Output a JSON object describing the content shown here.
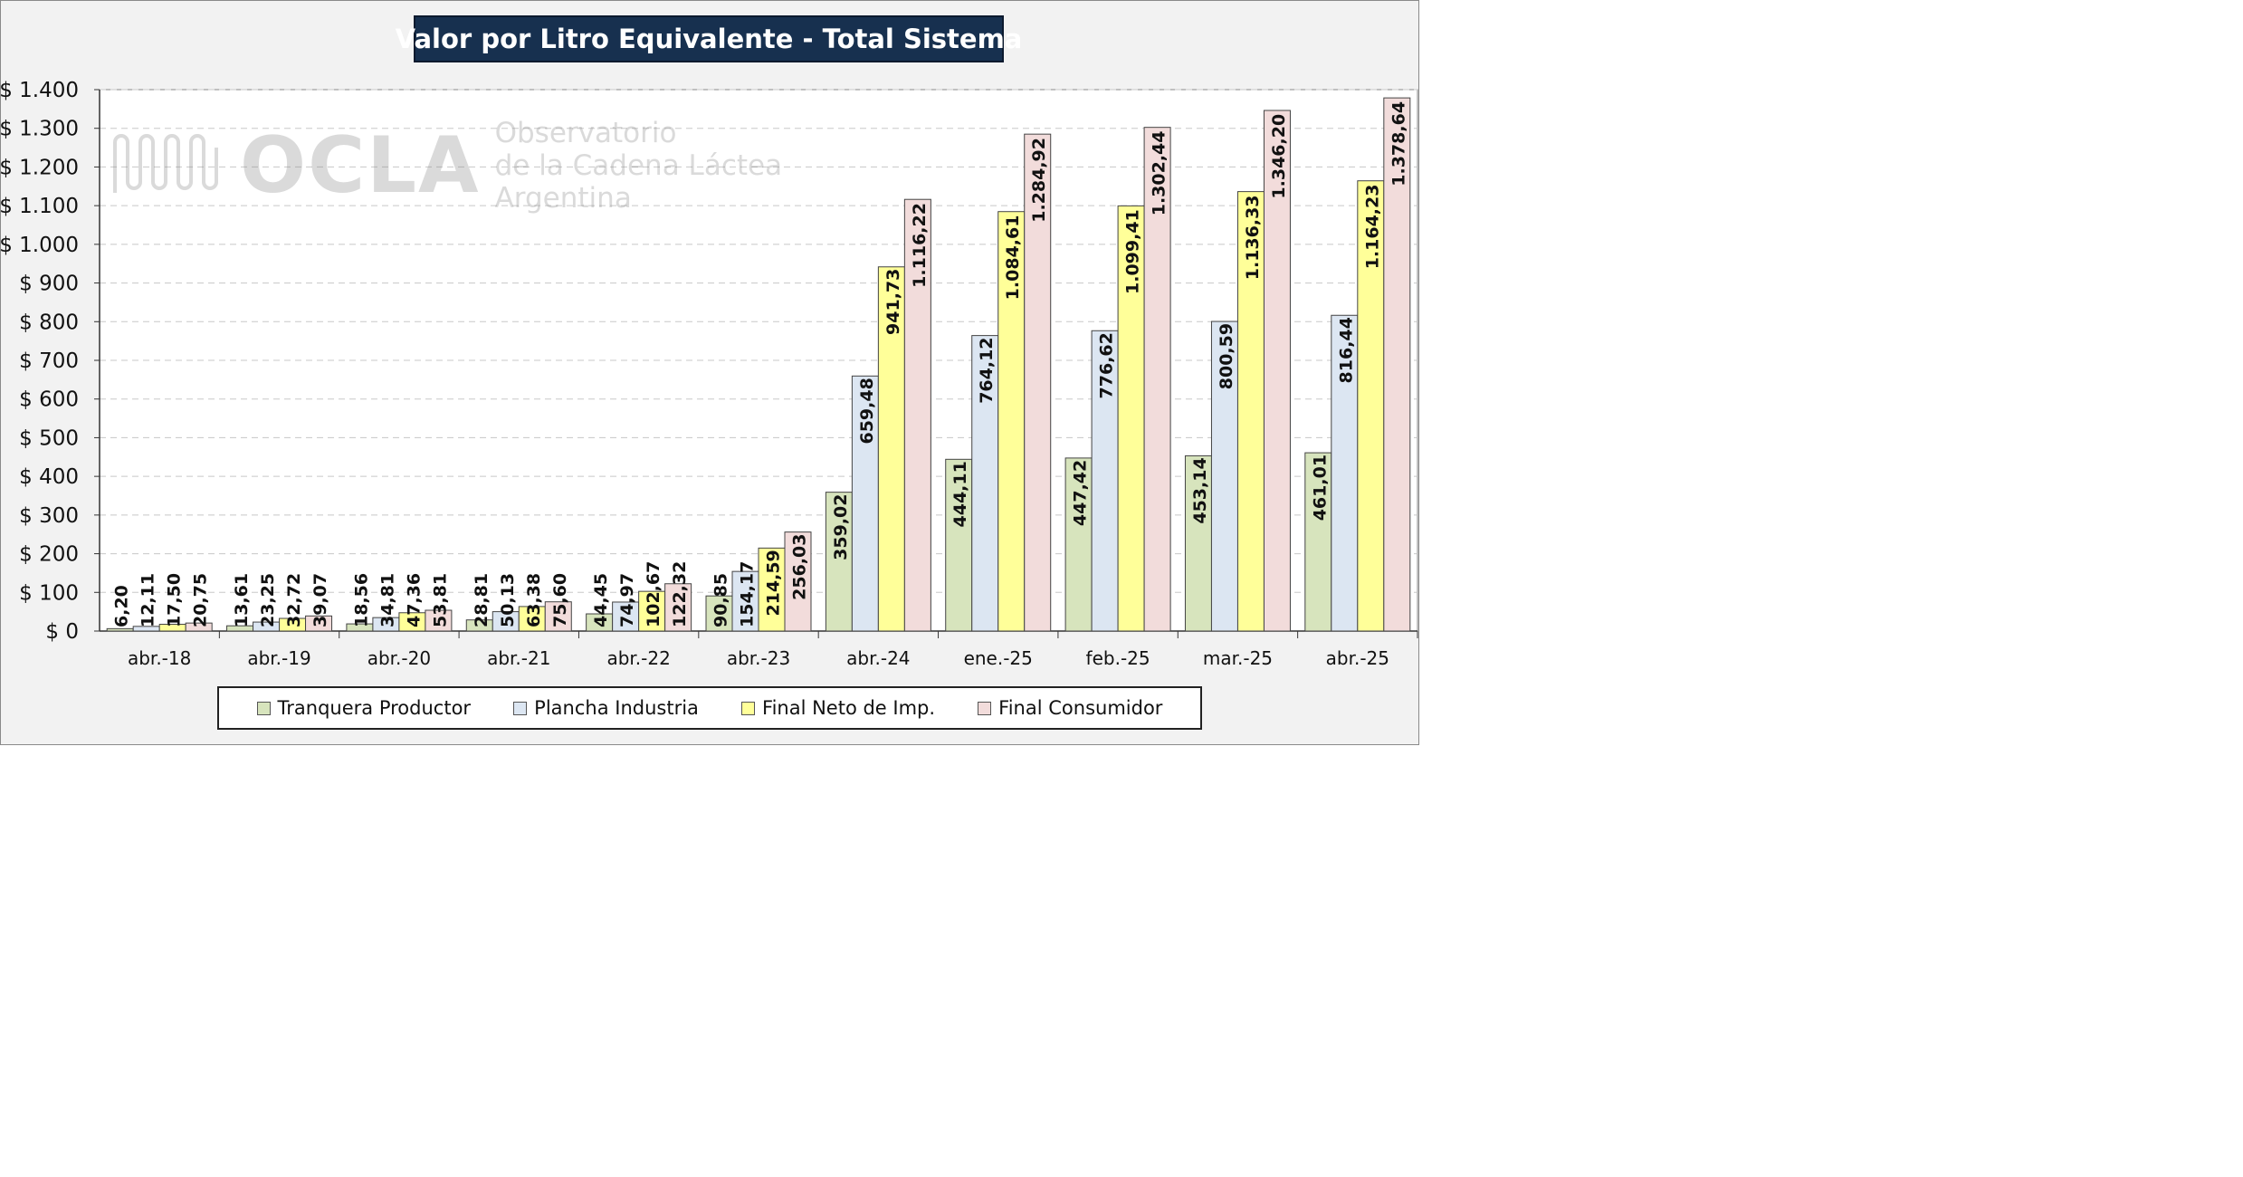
{
  "chart_data": {
    "type": "bar",
    "title": "Valor por Litro Equivalente - Total Sistema",
    "categories": [
      "abr.-18",
      "abr.-19",
      "abr.-20",
      "abr.-21",
      "abr.-22",
      "abr.-23",
      "abr.-24",
      "ene.-25",
      "feb.-25",
      "mar.-25",
      "abr.-25"
    ],
    "series": [
      {
        "name": "Tranquera Productor",
        "color": "#d7e4bd",
        "values": [
          6.2,
          13.61,
          18.56,
          28.81,
          44.45,
          90.85,
          359.02,
          444.11,
          447.42,
          453.14,
          461.01
        ],
        "labels": [
          "6,20",
          "13,61",
          "18,56",
          "28,81",
          "44,45",
          "90,85",
          "359,02",
          "444,11",
          "447,42",
          "453,14",
          "461,01"
        ]
      },
      {
        "name": "Plancha Industria",
        "color": "#dce6f2",
        "values": [
          12.11,
          23.25,
          34.81,
          50.13,
          74.97,
          154.17,
          659.48,
          764.12,
          776.62,
          800.59,
          816.44
        ],
        "labels": [
          "12,11",
          "23,25",
          "34,81",
          "50,13",
          "74,97",
          "154,17",
          "659,48",
          "764,12",
          "776,62",
          "800,59",
          "816,44"
        ]
      },
      {
        "name": "Final Neto de Imp.",
        "color": "#ffff99",
        "values": [
          17.5,
          32.72,
          47.36,
          63.38,
          102.67,
          214.59,
          941.73,
          1084.61,
          1099.41,
          1136.33,
          1164.23
        ],
        "labels": [
          "17,50",
          "32,72",
          "47,36",
          "63,38",
          "102,67",
          "214,59",
          "941,73",
          "1.084,61",
          "1.099,41",
          "1.136,33",
          "1.164,23"
        ]
      },
      {
        "name": "Final Consumidor",
        "color": "#f2dcdb",
        "values": [
          20.75,
          39.07,
          53.81,
          75.6,
          122.32,
          256.03,
          1116.22,
          1284.92,
          1302.44,
          1346.2,
          1378.64
        ],
        "labels": [
          "20,75",
          "39,07",
          "53,81",
          "75,60",
          "122,32",
          "256,03",
          "1.116,22",
          "1.284,92",
          "1.302,44",
          "1.346,20",
          "1.378,64"
        ]
      }
    ],
    "ylim": [
      0,
      1400
    ],
    "yticks": [
      0,
      100,
      200,
      300,
      400,
      500,
      600,
      700,
      800,
      900,
      1000,
      1100,
      1200,
      1300,
      1400
    ],
    "ytick_labels": [
      "$ 0",
      "$ 100",
      "$ 200",
      "$ 300",
      "$ 400",
      "$ 500",
      "$ 600",
      "$ 700",
      "$ 800",
      "$ 900",
      "$ 1.000",
      "$ 1.100",
      "$ 1.200",
      "$ 1.300",
      "$ 1.400"
    ],
    "grid": "horizontal dashed",
    "legend_position": "bottom"
  },
  "watermark": {
    "brand": "OCLA",
    "lines": [
      "Observatorio",
      "de la Cadena Láctea",
      "Argentina"
    ]
  }
}
